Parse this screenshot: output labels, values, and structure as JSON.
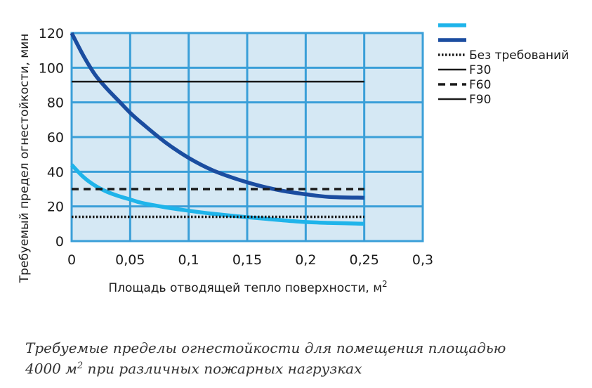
{
  "chart_data": {
    "type": "line",
    "xlabel": "Площадь отводящей тепло поверхности, м",
    "xlabel_sup": "2",
    "ylabel": "Требуемый предел огнестойкости, мин",
    "xlim": [
      0,
      0.3
    ],
    "ylim": [
      0,
      120
    ],
    "x_ticks": [
      0,
      0.05,
      0.1,
      0.15,
      0.2,
      0.25,
      0.3
    ],
    "x_tick_labels": [
      "0",
      "0,05",
      "0,1",
      "0,15",
      "0,2",
      "0,25",
      "0,3"
    ],
    "y_ticks": [
      0,
      20,
      40,
      60,
      80,
      100,
      120
    ],
    "y_tick_labels": [
      "0",
      "20",
      "40",
      "60",
      "80",
      "100",
      "120"
    ],
    "grid": true,
    "plot_background": "#d5e8f4",
    "grid_color": "#3a9fd8",
    "legend_position": "top-right",
    "series": [
      {
        "color": "#1fb4ea",
        "style": "solid",
        "x": [
          0,
          0.01,
          0.02,
          0.03,
          0.04,
          0.05,
          0.06,
          0.08,
          0.1,
          0.12,
          0.15,
          0.18,
          0.2,
          0.22,
          0.25
        ],
        "y": [
          44,
          37,
          32,
          28.5,
          26,
          24,
          22,
          19.5,
          17.5,
          15.8,
          13.8,
          12,
          11,
          10.5,
          10
        ]
      },
      {
        "color": "#1b4da0",
        "style": "solid",
        "x": [
          0,
          0.01,
          0.02,
          0.03,
          0.04,
          0.05,
          0.06,
          0.08,
          0.1,
          0.12,
          0.14,
          0.16,
          0.18,
          0.2,
          0.22,
          0.25
        ],
        "y": [
          120,
          107,
          96,
          88,
          81,
          74,
          68,
          57,
          48,
          41,
          36,
          32,
          29,
          27,
          25.5,
          25
        ]
      },
      {
        "name": "Без требований",
        "color": "#1a1a1a",
        "style": "dotted",
        "x": [
          0,
          0.25
        ],
        "y": [
          14,
          14
        ]
      },
      {
        "name": "F30",
        "color": "#1a1a1a",
        "style": "solid-thin",
        "x": [
          0,
          0.25
        ],
        "y": [
          92,
          92
        ]
      },
      {
        "name": "F60",
        "color": "#1a1a1a",
        "style": "dashed",
        "x": [
          0,
          0.25
        ],
        "y": [
          30,
          30
        ]
      }
    ],
    "legend": [
      {
        "label": "",
        "color": "#1fb4ea",
        "style": "thick"
      },
      {
        "label": "",
        "color": "#1b4da0",
        "style": "thick"
      },
      {
        "label": "Без требований",
        "color": "#1a1a1a",
        "style": "dotted"
      },
      {
        "label": "F30",
        "color": "#1a1a1a",
        "style": "solid-thin"
      },
      {
        "label": "F60",
        "color": "#1a1a1a",
        "style": "dashed"
      },
      {
        "label": "F90",
        "color": "#1a1a1a",
        "style": "solid-thin"
      }
    ]
  },
  "caption": {
    "line1": "Требуемые пределы огнестойкости для помещения площадью",
    "line2_before": "4000 м",
    "line2_sup": "2",
    "line2_after": " при различных пожарных нагрузках"
  }
}
